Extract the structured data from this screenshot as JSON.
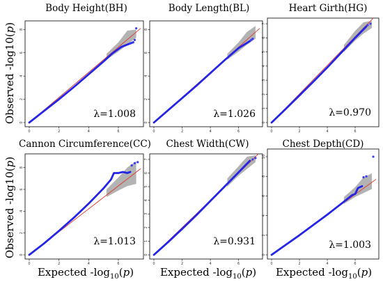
{
  "figure": {
    "ylabel_text": "Observed -log10(",
    "ylabel_p": "p",
    "ylabel_close": ")",
    "xlabel_text": "Expected -log",
    "xlabel_sub": "10",
    "xlabel_open": "(",
    "xlabel_p": "p",
    "xlabel_close": ")"
  },
  "colors": {
    "points": "#2424e6",
    "reference_line": "#e0392b",
    "confidence_band": "#9a9a9a"
  },
  "chart_data": [
    {
      "type": "scatter",
      "title": "Body Height(BH)",
      "lambda_label": "λ=1.008",
      "xlim": [
        0,
        7.5
      ],
      "ylim": [
        0,
        8.5
      ],
      "x_ticks": [
        0,
        2,
        4,
        6
      ],
      "y_ticks": [
        0,
        2,
        4,
        6,
        8
      ],
      "ref_line": [
        [
          0,
          0
        ],
        [
          7.5,
          8.1
        ]
      ],
      "band": {
        "x": [
          5.2,
          6.0,
          6.6,
          7.2
        ],
        "upper": [
          5.9,
          6.9,
          7.9,
          8.0
        ],
        "lower": [
          5.4,
          6.1,
          6.7,
          7.3
        ]
      },
      "curve": [
        [
          0,
          0
        ],
        [
          1,
          1.0
        ],
        [
          2,
          2.0
        ],
        [
          3,
          3.05
        ],
        [
          4,
          4.15
        ],
        [
          5,
          5.25
        ],
        [
          5.6,
          5.95
        ],
        [
          6.2,
          6.5
        ],
        [
          6.6,
          6.7
        ],
        [
          7.0,
          6.9
        ]
      ],
      "points": [
        [
          6.8,
          6.8
        ],
        [
          7.0,
          6.9
        ],
        [
          7.1,
          7.1
        ],
        [
          7.2,
          8.1
        ]
      ]
    },
    {
      "type": "scatter",
      "title": "Body Length(BL)",
      "lambda_label": "λ=1.026",
      "xlim": [
        0,
        7.5
      ],
      "ylim": [
        0,
        8.5
      ],
      "x_ticks": [
        0,
        2,
        4,
        6
      ],
      "y_ticks": [
        0,
        2,
        4,
        6,
        8
      ],
      "ref_line": [
        [
          0,
          0
        ],
        [
          7.5,
          8.1
        ]
      ],
      "band": {
        "x": [
          5.2,
          6.0,
          6.6,
          7.2
        ],
        "upper": [
          5.9,
          6.9,
          7.8,
          8.3
        ],
        "lower": [
          5.4,
          6.1,
          6.7,
          7.2
        ]
      },
      "curve": [
        [
          0,
          0
        ],
        [
          1,
          1.05
        ],
        [
          2,
          2.1
        ],
        [
          3,
          3.15
        ],
        [
          4,
          4.25
        ],
        [
          5,
          5.35
        ],
        [
          6,
          6.4
        ],
        [
          6.8,
          7.0
        ]
      ],
      "points": [
        [
          6.9,
          7.1
        ],
        [
          7.0,
          7.2
        ]
      ]
    },
    {
      "type": "scatter",
      "title": "Heart Girth(HG)",
      "lambda_label": "λ=0.970",
      "xlim": [
        0,
        7.5
      ],
      "ylim": [
        0,
        7.2
      ],
      "x_ticks": [
        0,
        2,
        4,
        6
      ],
      "y_ticks": [
        0,
        1,
        2,
        3,
        4,
        5,
        6,
        7
      ],
      "ref_line": [
        [
          0,
          0
        ],
        [
          7.5,
          7.6
        ]
      ],
      "band": {
        "x": [
          5.2,
          6.0,
          6.6,
          7.2
        ],
        "upper": [
          5.5,
          6.5,
          7.1,
          7.2
        ],
        "lower": [
          5.0,
          5.8,
          6.3,
          6.7
        ]
      },
      "curve": [
        [
          0,
          0
        ],
        [
          1,
          0.95
        ],
        [
          2,
          1.92
        ],
        [
          3,
          2.9
        ],
        [
          4,
          3.9
        ],
        [
          5,
          4.95
        ],
        [
          6,
          6.0
        ],
        [
          6.8,
          6.8
        ]
      ],
      "points": [
        [
          6.9,
          6.9
        ],
        [
          7.1,
          7.0
        ]
      ]
    },
    {
      "type": "scatter",
      "title": "Cannon Circumference(CC)",
      "lambda_label": "λ=1.013",
      "xlim": [
        0,
        7.5
      ],
      "ylim": [
        0,
        9
      ],
      "x_ticks": [
        0,
        2,
        4,
        6
      ],
      "y_ticks": [
        0,
        2,
        4,
        6,
        8
      ],
      "ref_line": [
        [
          0,
          0
        ],
        [
          7.5,
          7.9
        ]
      ],
      "band": {
        "x": [
          5.2,
          6.0,
          6.6,
          7.2
        ],
        "upper": [
          6.0,
          7.1,
          8.0,
          8.6
        ],
        "lower": [
          5.3,
          5.9,
          6.3,
          6.5
        ]
      },
      "curve": [
        [
          0,
          0
        ],
        [
          1,
          1.05
        ],
        [
          2,
          2.2
        ],
        [
          3,
          3.4
        ],
        [
          4,
          4.7
        ],
        [
          5,
          6.1
        ],
        [
          5.5,
          6.9
        ],
        [
          5.7,
          7.5
        ],
        [
          6.0,
          7.5
        ],
        [
          6.3,
          7.6
        ],
        [
          6.6,
          7.5
        ],
        [
          6.8,
          7.6
        ]
      ],
      "points": [
        [
          6.9,
          8.2
        ],
        [
          7.1,
          8.4
        ],
        [
          7.3,
          8.5
        ]
      ]
    },
    {
      "type": "scatter",
      "title": "Chest Width(CW)",
      "lambda_label": "λ=0.931",
      "xlim": [
        0,
        7.5
      ],
      "ylim": [
        0,
        7.2
      ],
      "x_ticks": [
        0,
        2,
        4,
        6
      ],
      "y_ticks": [
        0,
        1,
        2,
        3,
        4,
        5,
        6,
        7
      ],
      "ref_line": [
        [
          0,
          0
        ],
        [
          7.5,
          7.5
        ]
      ],
      "band": {
        "x": [
          5.2,
          6.0,
          6.6,
          7.2
        ],
        "upper": [
          5.6,
          6.5,
          7.2,
          7.3
        ],
        "lower": [
          5.0,
          5.8,
          6.3,
          6.8
        ]
      },
      "curve": [
        [
          0,
          0
        ],
        [
          1,
          0.93
        ],
        [
          2,
          1.9
        ],
        [
          3,
          2.9
        ],
        [
          4,
          3.95
        ],
        [
          5,
          5.0
        ],
        [
          6,
          6.05
        ],
        [
          6.8,
          6.9
        ]
      ],
      "points": [
        [
          7.0,
          7.0
        ],
        [
          7.2,
          7.1
        ]
      ]
    },
    {
      "type": "scatter",
      "title": "Chest Depth(CD)",
      "lambda_label": "λ=1.003",
      "xlim": [
        0,
        7.5
      ],
      "ylim": [
        0,
        10.5
      ],
      "x_ticks": [
        0,
        2,
        4,
        6
      ],
      "y_ticks": [
        0,
        2,
        4,
        6,
        8,
        10
      ],
      "ref_line": [
        [
          0,
          0
        ],
        [
          7.5,
          7.7
        ]
      ],
      "band": {
        "x": [
          5.2,
          6.0,
          6.6,
          7.2
        ],
        "upper": [
          5.9,
          6.9,
          7.9,
          8.3
        ],
        "lower": [
          5.2,
          5.9,
          6.3,
          6.7
        ]
      },
      "curve": [
        [
          0,
          0
        ],
        [
          1,
          1.0
        ],
        [
          2,
          2.0
        ],
        [
          3,
          3.05
        ],
        [
          4,
          4.1
        ],
        [
          5,
          5.2
        ],
        [
          5.8,
          6.1
        ],
        [
          6.0,
          6.2
        ],
        [
          6.2,
          6.8
        ],
        [
          6.5,
          7.0
        ]
      ],
      "points": [
        [
          6.6,
          7.9
        ],
        [
          6.8,
          8.0
        ],
        [
          7.3,
          10.0
        ]
      ]
    }
  ]
}
